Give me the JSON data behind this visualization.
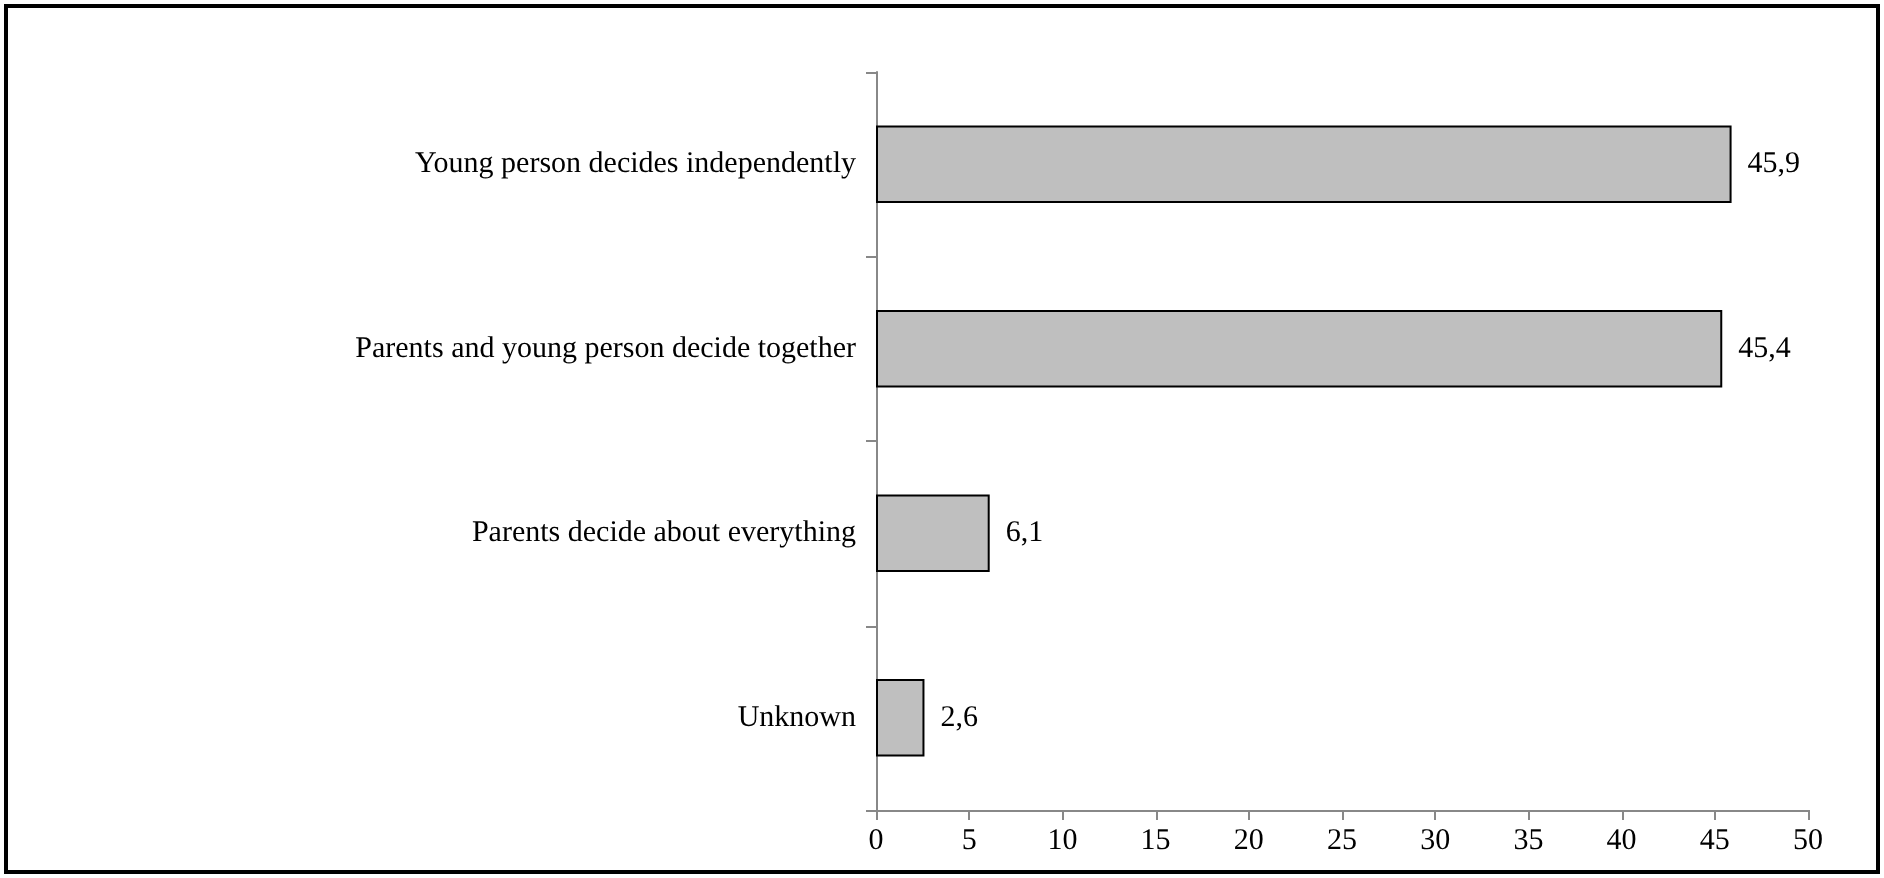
{
  "chart_data": {
    "type": "bar",
    "orientation": "horizontal",
    "categories": [
      "Young person decides independently",
      "Parents and young person decide together",
      "Parents decide about everything",
      "Unknown"
    ],
    "values": [
      45.9,
      45.4,
      6.1,
      2.6
    ],
    "value_labels": [
      "45,9",
      "45,4",
      "6,1",
      "2,6"
    ],
    "color": "#bfbfbf",
    "xlim": [
      0,
      50
    ],
    "xticks": [
      0,
      5,
      10,
      15,
      20,
      25,
      30,
      35,
      40,
      45,
      50
    ],
    "grid": false
  }
}
